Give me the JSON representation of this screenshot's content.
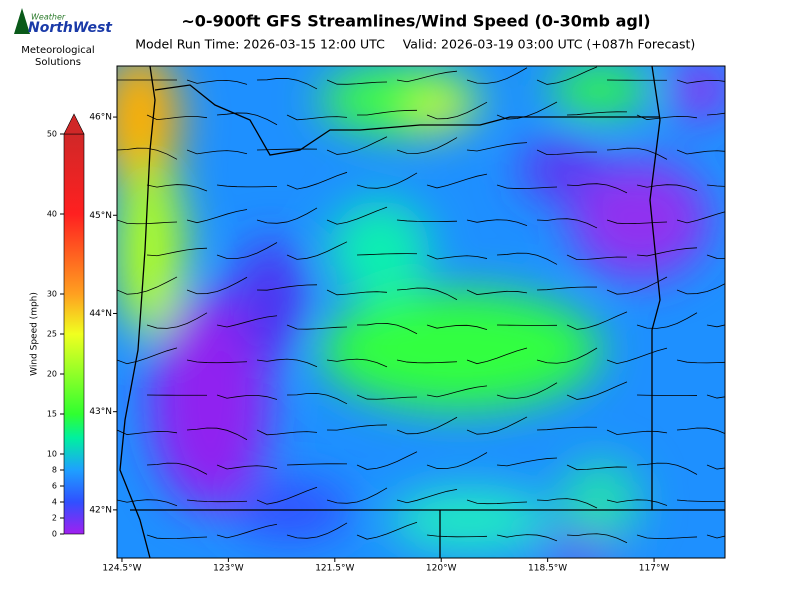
{
  "header": {
    "title": "~0-900ft GFS Streamlines/Wind Speed (0-30mb agl)",
    "model_run": "Model Run Time: 2026-03-15 12:00 UTC",
    "valid": "Valid: 2026-03-19 03:00 UTC  (+087h Forecast)"
  },
  "logo": {
    "top": "Weather",
    "name": "NorthWest",
    "line1": "Meteorological",
    "line2": "Solutions"
  },
  "map": {
    "xlim": [
      -124.57,
      -116.0
    ],
    "ylim": [
      41.51,
      46.52
    ],
    "xticks": [
      {
        "value": -124.5,
        "label": "124.5°W"
      },
      {
        "value": -123,
        "label": "123°W"
      },
      {
        "value": -121.5,
        "label": "121.5°W"
      },
      {
        "value": -120,
        "label": "120°W"
      },
      {
        "value": -118.5,
        "label": "118.5°W"
      },
      {
        "value": -117,
        "label": "117°W"
      }
    ],
    "yticks": [
      {
        "value": 42,
        "label": "42°N"
      },
      {
        "value": 43,
        "label": "43°N"
      },
      {
        "value": 44,
        "label": "44°N"
      },
      {
        "value": 45,
        "label": "45°N"
      },
      {
        "value": 46,
        "label": "46°N"
      }
    ]
  },
  "colorbar": {
    "label": "Wind Speed (mph)",
    "lim": [
      0,
      50
    ],
    "ticks": [
      0,
      2,
      4,
      6,
      8,
      10,
      15,
      20,
      25,
      30,
      40,
      50
    ]
  }
}
